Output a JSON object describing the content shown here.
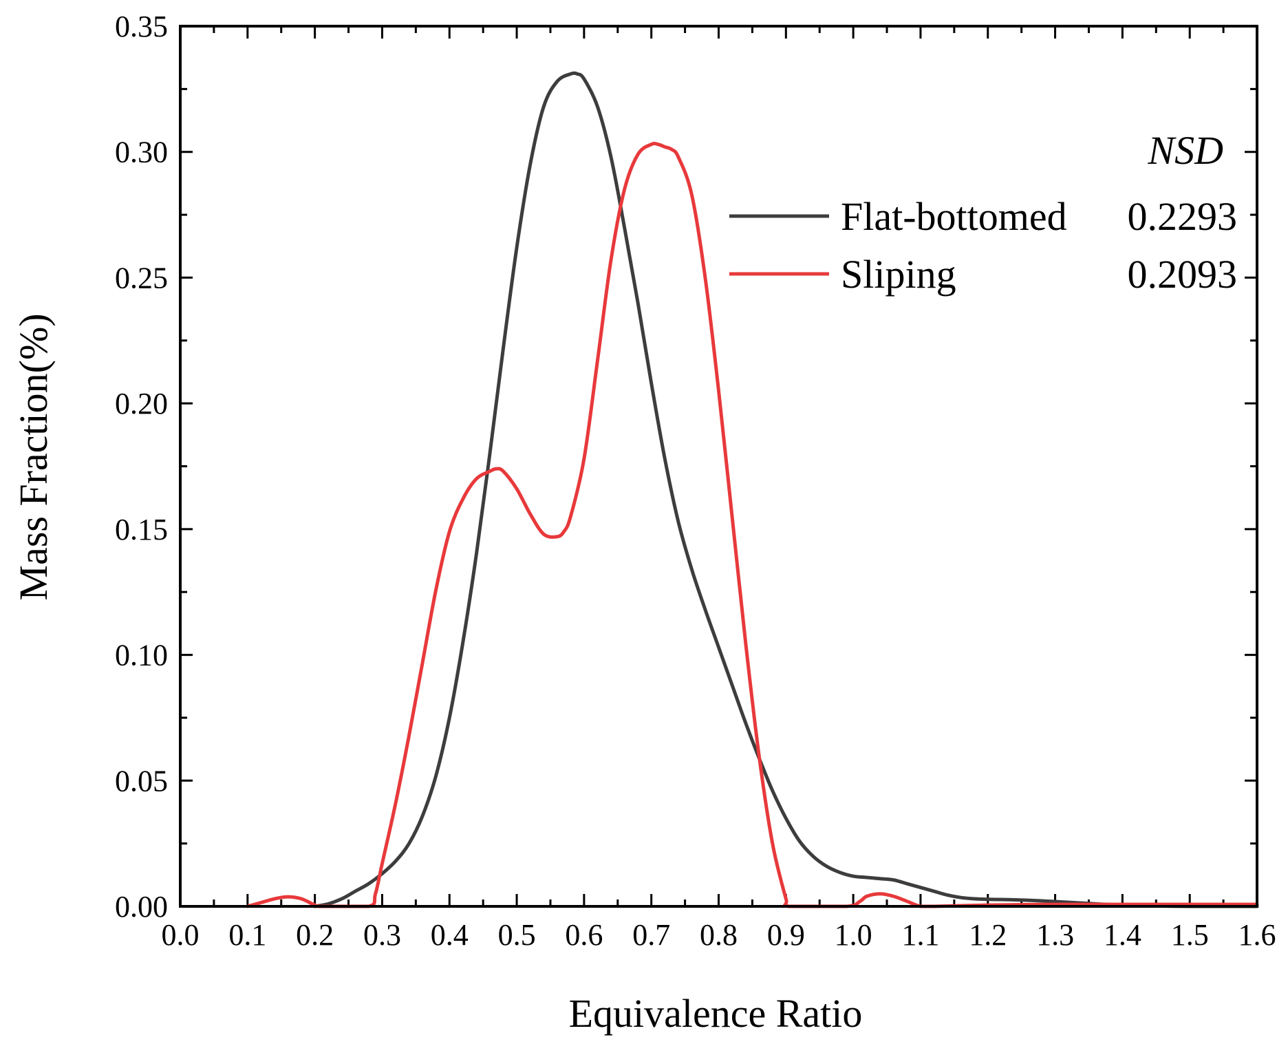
{
  "chart_data": {
    "type": "line",
    "title": "",
    "xlabel": "Equivalence Ratio",
    "ylabel": "Mass Fraction(%)",
    "xlim": [
      0.0,
      1.6
    ],
    "ylim": [
      0.0,
      0.35
    ],
    "x_ticks": [
      "0.0",
      "0.1",
      "0.2",
      "0.3",
      "0.4",
      "0.5",
      "0.6",
      "0.7",
      "0.8",
      "0.9",
      "1.0",
      "1.1",
      "1.2",
      "1.3",
      "1.4",
      "1.5",
      "1.6"
    ],
    "y_ticks": [
      "0.00",
      "0.05",
      "0.10",
      "0.15",
      "0.20",
      "0.25",
      "0.30",
      "0.35"
    ],
    "legend_title": "NSD",
    "legend_position": "top-right",
    "series": [
      {
        "name": "Flat-bottomed",
        "nsd": "0.2293",
        "color": "#3d3d3d",
        "x": [
          0.2,
          0.22,
          0.24,
          0.26,
          0.28,
          0.3,
          0.32,
          0.34,
          0.36,
          0.38,
          0.4,
          0.42,
          0.44,
          0.46,
          0.48,
          0.5,
          0.52,
          0.54,
          0.56,
          0.58,
          0.59,
          0.6,
          0.62,
          0.64,
          0.66,
          0.68,
          0.7,
          0.72,
          0.74,
          0.76,
          0.78,
          0.8,
          0.82,
          0.84,
          0.86,
          0.88,
          0.9,
          0.92,
          0.94,
          0.96,
          0.98,
          1.0,
          1.02,
          1.04,
          1.06,
          1.08,
          1.1,
          1.12,
          1.14,
          1.16,
          1.18,
          1.2,
          1.24,
          1.28,
          1.32,
          1.36,
          1.4,
          1.44,
          1.5,
          1.6
        ],
        "y": [
          0.0,
          0.001,
          0.003,
          0.006,
          0.009,
          0.013,
          0.018,
          0.025,
          0.036,
          0.052,
          0.075,
          0.105,
          0.14,
          0.18,
          0.222,
          0.262,
          0.295,
          0.318,
          0.328,
          0.331,
          0.331,
          0.329,
          0.318,
          0.298,
          0.27,
          0.24,
          0.208,
          0.178,
          0.153,
          0.134,
          0.118,
          0.103,
          0.088,
          0.073,
          0.059,
          0.046,
          0.035,
          0.026,
          0.02,
          0.016,
          0.0135,
          0.012,
          0.0115,
          0.011,
          0.0105,
          0.009,
          0.0075,
          0.006,
          0.0045,
          0.0035,
          0.003,
          0.0028,
          0.0026,
          0.0022,
          0.0016,
          0.001,
          0.0005,
          0.0002,
          0.0,
          0.0
        ]
      },
      {
        "name": "Sliping",
        "nsd": "0.2093",
        "color": "#e8393b",
        "x": [
          0.1,
          0.12,
          0.14,
          0.16,
          0.18,
          0.2,
          0.21,
          0.28,
          0.29,
          0.3,
          0.32,
          0.34,
          0.36,
          0.38,
          0.4,
          0.42,
          0.44,
          0.46,
          0.47,
          0.48,
          0.5,
          0.52,
          0.54,
          0.56,
          0.57,
          0.58,
          0.6,
          0.62,
          0.64,
          0.66,
          0.68,
          0.7,
          0.71,
          0.72,
          0.73,
          0.74,
          0.76,
          0.78,
          0.8,
          0.82,
          0.84,
          0.86,
          0.88,
          0.9,
          0.905,
          0.99,
          1.01,
          1.02,
          1.04,
          1.06,
          1.08,
          1.1,
          1.12,
          1.2,
          1.3,
          1.4,
          1.5,
          1.6
        ],
        "y": [
          0.0,
          0.0015,
          0.003,
          0.0038,
          0.003,
          0.0005,
          0.0,
          0.0,
          0.005,
          0.017,
          0.041,
          0.068,
          0.097,
          0.126,
          0.149,
          0.162,
          0.17,
          0.173,
          0.174,
          0.173,
          0.166,
          0.156,
          0.148,
          0.147,
          0.149,
          0.155,
          0.178,
          0.217,
          0.257,
          0.285,
          0.299,
          0.303,
          0.303,
          0.302,
          0.301,
          0.298,
          0.283,
          0.25,
          0.205,
          0.155,
          0.105,
          0.06,
          0.025,
          0.003,
          0.0,
          0.0,
          0.002,
          0.004,
          0.005,
          0.004,
          0.002,
          0.0,
          0.0,
          0.0005,
          0.0008,
          0.0008,
          0.0008,
          0.0008
        ]
      }
    ]
  }
}
